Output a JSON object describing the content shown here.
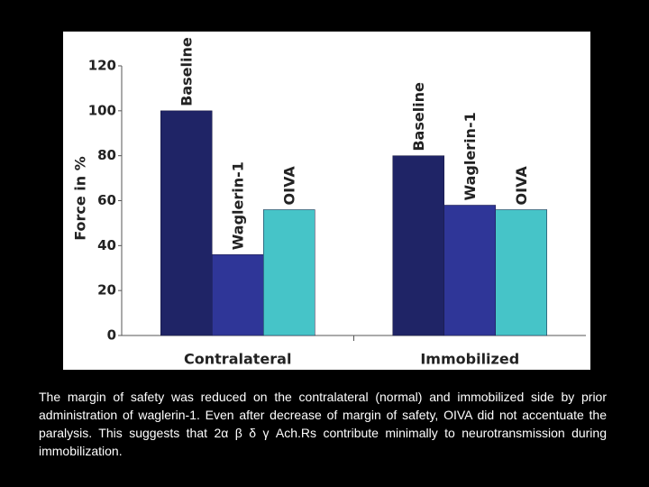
{
  "chart_data": {
    "type": "bar",
    "categories": [
      "Contralateral",
      "Immobilized"
    ],
    "series": [
      {
        "name": "Baseline",
        "color": "#1f2466",
        "values": [
          100,
          80
        ]
      },
      {
        "name": "Waglerin-1",
        "color": "#2f3698",
        "values": [
          36,
          58
        ]
      },
      {
        "name": "OIVA",
        "color": "#46c4c8",
        "values": [
          56,
          56
        ]
      }
    ],
    "y_label": "Force in %",
    "ylim": [
      0,
      120
    ],
    "yticks": [
      0,
      20,
      40,
      60,
      80,
      100,
      120
    ]
  },
  "caption": "The margin of safety was reduced on the contralateral (normal) and immobilized side by prior administration of waglerin-1. Even after decrease of margin of safety, OIVA did not accentuate the paralysis. This suggests that 2α β δ γ Ach.Rs contribute minimally to neurotransmission during immobilization."
}
